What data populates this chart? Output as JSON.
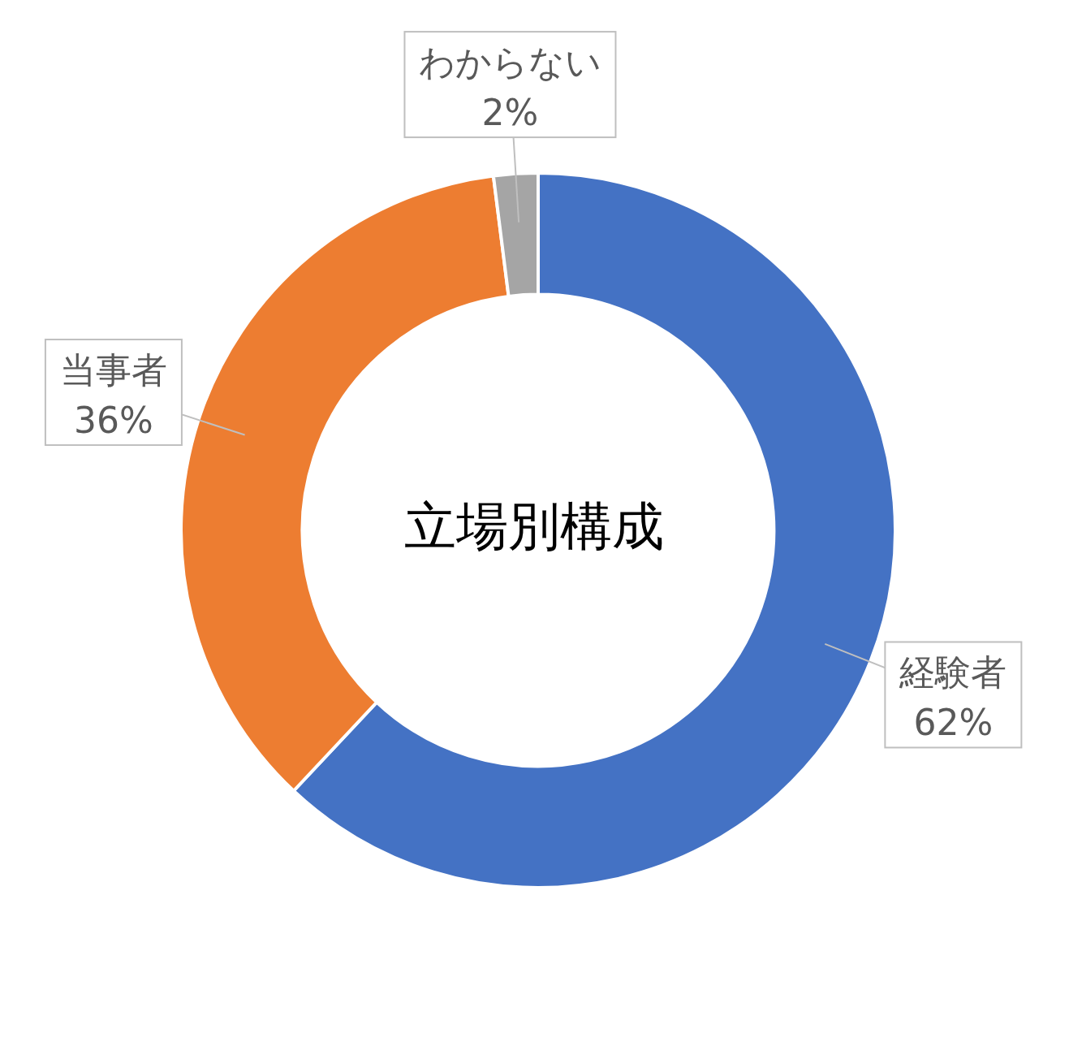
{
  "chart_data": {
    "type": "donut",
    "title": "立場別構成",
    "categories": [
      "経験者",
      "当事者",
      "わからない"
    ],
    "values": [
      62,
      36,
      2
    ],
    "colors": [
      "#4472c4",
      "#ed7d31",
      "#a5a5a5"
    ],
    "value_labels": [
      "62%",
      "36%",
      "2%"
    ]
  }
}
